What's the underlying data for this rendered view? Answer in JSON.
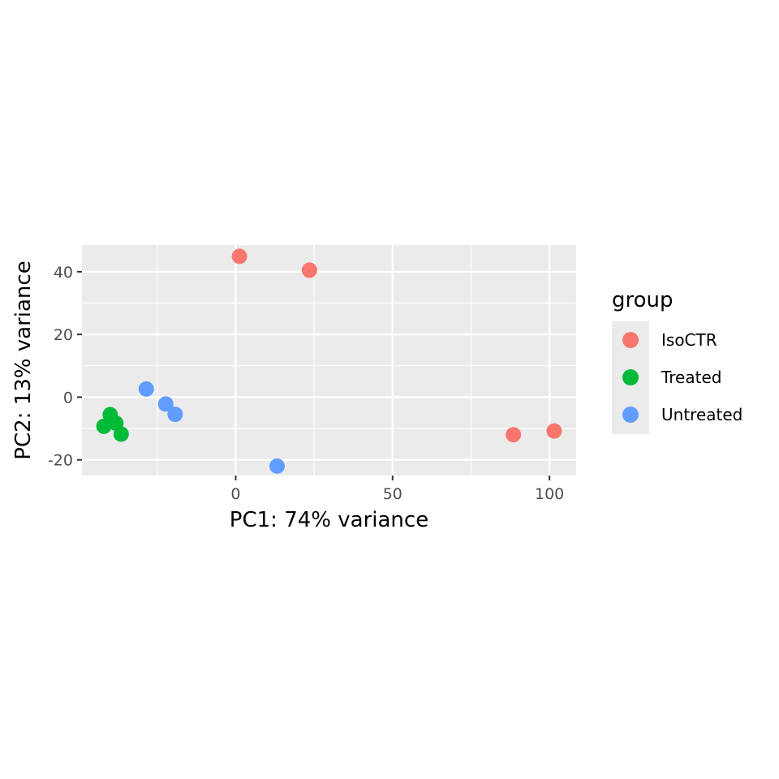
{
  "chart_data": {
    "type": "scatter",
    "xlabel": "PC1: 74% variance",
    "ylabel": "PC2: 13% variance",
    "xlim": [
      -49,
      108.5
    ],
    "ylim": [
      -25,
      48.5
    ],
    "x_ticks": [
      0,
      50,
      100
    ],
    "y_ticks": [
      -20,
      0,
      20,
      40
    ],
    "grid": true,
    "legend": {
      "title": "group",
      "position": "right"
    },
    "series": [
      {
        "name": "IsoCTR",
        "color": "#F8766D",
        "points": [
          {
            "x": 1.2,
            "y": 44.9
          },
          {
            "x": 23.5,
            "y": 40.5
          },
          {
            "x": 88.5,
            "y": -12.0
          },
          {
            "x": 101.5,
            "y": -10.8
          }
        ]
      },
      {
        "name": "Treated",
        "color": "#00BA38",
        "points": [
          {
            "x": -40.0,
            "y": -5.6
          },
          {
            "x": -38.2,
            "y": -8.3
          },
          {
            "x": -42.0,
            "y": -9.3
          },
          {
            "x": -36.5,
            "y": -11.8
          }
        ]
      },
      {
        "name": "Untreated",
        "color": "#619CFF",
        "points": [
          {
            "x": -28.5,
            "y": 2.6
          },
          {
            "x": -22.3,
            "y": -2.2
          },
          {
            "x": -19.3,
            "y": -5.5
          },
          {
            "x": 13.2,
            "y": -22.0
          }
        ]
      }
    ]
  }
}
